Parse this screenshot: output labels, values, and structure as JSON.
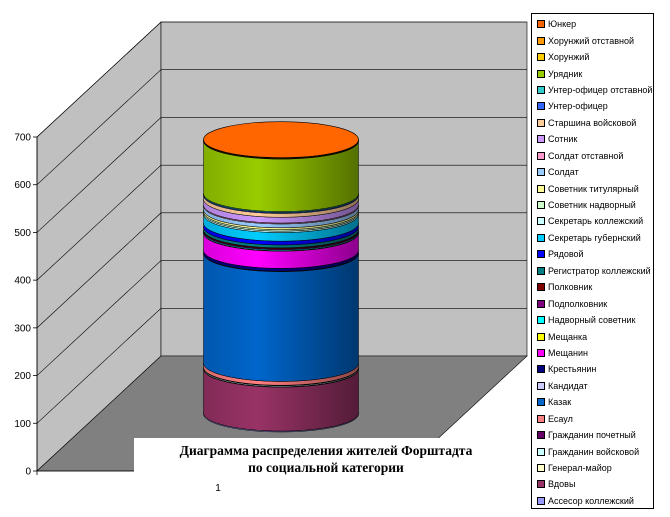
{
  "chart_data": {
    "type": "bar",
    "stacked": true,
    "shape": "cylinder",
    "title_lines": [
      "Диаграмма распределения жителей Форштадта",
      "по социальной категории"
    ],
    "categories": [
      "1"
    ],
    "y_ticks": [
      "0",
      "100",
      "200",
      "300",
      "400",
      "500",
      "600",
      "700"
    ],
    "ylim": [
      0,
      700
    ],
    "grid": true,
    "legend_position": "right",
    "series": [
      {
        "name": "Ассесор коллежский",
        "value": 2,
        "color": "#9999FF"
      },
      {
        "name": "Вдовы",
        "value": 92,
        "color": "#993366"
      },
      {
        "name": "Генерал-майор",
        "value": 1,
        "color": "#FFFFCC"
      },
      {
        "name": "Гражданин войсковой",
        "value": 2,
        "color": "#CCFFFF"
      },
      {
        "name": "Гражданин почетный",
        "value": 1,
        "color": "#660066"
      },
      {
        "name": "Есаул",
        "value": 8,
        "color": "#FF8080"
      },
      {
        "name": "Казак",
        "value": 230,
        "color": "#0066CC"
      },
      {
        "name": "Кандидат",
        "value": 1,
        "color": "#CCCCFF"
      },
      {
        "name": "Крестьянин",
        "value": 6,
        "color": "#000080"
      },
      {
        "name": "Мещанин",
        "value": 36,
        "color": "#FF00FF"
      },
      {
        "name": "Мещанка",
        "value": 1,
        "color": "#FFFF00"
      },
      {
        "name": "Надворный советник",
        "value": 2,
        "color": "#00FFFF"
      },
      {
        "name": "Подполковник",
        "value": 2,
        "color": "#800080"
      },
      {
        "name": "Полковник",
        "value": 2,
        "color": "#800000"
      },
      {
        "name": "Регистратор коллежский",
        "value": 6,
        "color": "#008080"
      },
      {
        "name": "Рядовой",
        "value": 8,
        "color": "#0000FF"
      },
      {
        "name": "Секретарь губернский",
        "value": 18,
        "color": "#00CCFF"
      },
      {
        "name": "Секретарь коллежский",
        "value": 3,
        "color": "#CCFFFF"
      },
      {
        "name": "Советник надворный",
        "value": 3,
        "color": "#CCFFCC"
      },
      {
        "name": "Советник титулярный",
        "value": 4,
        "color": "#FFFF99"
      },
      {
        "name": "Солдат",
        "value": 8,
        "color": "#99CCFF"
      },
      {
        "name": "Солдат отставной",
        "value": 2,
        "color": "#FF99CC"
      },
      {
        "name": "Сотник",
        "value": 12,
        "color": "#CC99FF"
      },
      {
        "name": "Старшина войсковой",
        "value": 8,
        "color": "#FFCC99"
      },
      {
        "name": "Унтер-офицер",
        "value": 2,
        "color": "#3366FF"
      },
      {
        "name": "Унтер-офицер отставной",
        "value": 2,
        "color": "#33CCCC"
      },
      {
        "name": "Урядник",
        "value": 110,
        "color": "#99CC00"
      },
      {
        "name": "Хорунжий",
        "value": 1,
        "color": "#FFCC00"
      },
      {
        "name": "Хорунжий отставной",
        "value": 1,
        "color": "#FF9900"
      },
      {
        "name": "Юнкер",
        "value": 1,
        "color": "#FF6600"
      }
    ]
  }
}
